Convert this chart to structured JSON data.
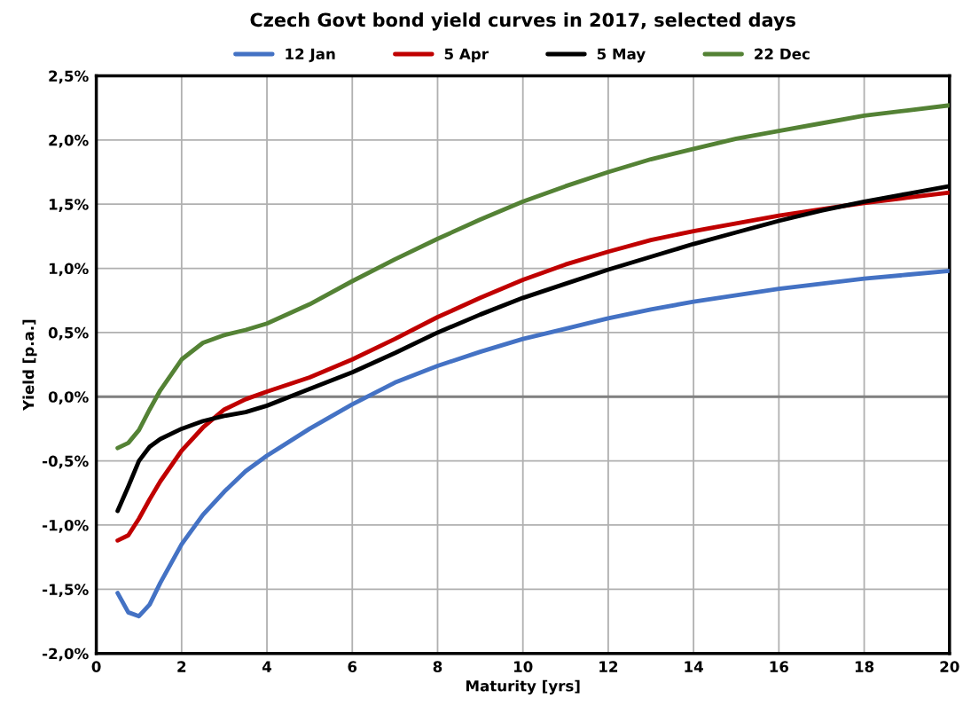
{
  "chart_data": {
    "type": "line",
    "title": "Czech Govt bond yield curves in 2017, selected days",
    "xlabel": "Maturity [yrs]",
    "ylabel": "Yield [p.a.]",
    "x": [
      0.5,
      0.75,
      1,
      1.25,
      1.5,
      2,
      2.5,
      3,
      3.5,
      4,
      5,
      6,
      7,
      8,
      9,
      10,
      11,
      12,
      13,
      14,
      15,
      16,
      17,
      18,
      19,
      20
    ],
    "series": [
      {
        "name": "12 Jan",
        "color": "#4472c4",
        "values": [
          -1.53,
          -1.68,
          -1.71,
          -1.62,
          -1.45,
          -1.15,
          -0.92,
          -0.74,
          -0.58,
          -0.46,
          -0.25,
          -0.06,
          0.11,
          0.24,
          0.35,
          0.45,
          0.53,
          0.61,
          0.68,
          0.74,
          0.79,
          0.84,
          0.88,
          0.92,
          0.95,
          0.98
        ]
      },
      {
        "name": "5 Apr",
        "color": "#c00000",
        "values": [
          -1.12,
          -1.08,
          -0.95,
          -0.8,
          -0.66,
          -0.42,
          -0.24,
          -0.1,
          -0.02,
          0.04,
          0.15,
          0.29,
          0.45,
          0.62,
          0.77,
          0.91,
          1.03,
          1.13,
          1.22,
          1.29,
          1.35,
          1.41,
          1.46,
          1.51,
          1.55,
          1.59
        ]
      },
      {
        "name": "5 May",
        "color": "#000000",
        "values": [
          -0.89,
          -0.7,
          -0.5,
          -0.39,
          -0.33,
          -0.25,
          -0.19,
          -0.15,
          -0.12,
          -0.07,
          0.06,
          0.19,
          0.34,
          0.5,
          0.64,
          0.77,
          0.88,
          0.99,
          1.09,
          1.19,
          1.28,
          1.37,
          1.45,
          1.52,
          1.58,
          1.64
        ]
      },
      {
        "name": "22 Dec",
        "color": "#548235",
        "values": [
          -0.4,
          -0.36,
          -0.26,
          -0.1,
          0.05,
          0.29,
          0.42,
          0.48,
          0.52,
          0.57,
          0.72,
          0.9,
          1.07,
          1.23,
          1.38,
          1.52,
          1.64,
          1.75,
          1.85,
          1.93,
          2.01,
          2.07,
          2.13,
          2.19,
          2.23,
          2.27
        ]
      }
    ],
    "xlim": [
      0,
      20
    ],
    "xticks": [
      0,
      2,
      4,
      6,
      8,
      10,
      12,
      14,
      16,
      18,
      20
    ],
    "ylim": [
      -2.0,
      2.5
    ],
    "yticks": [
      {
        "value": -2.0,
        "label": "-2,0%"
      },
      {
        "value": -1.5,
        "label": "-1,5%"
      },
      {
        "value": -1.0,
        "label": "-1,0%"
      },
      {
        "value": -0.5,
        "label": "-0,5%"
      },
      {
        "value": 0,
        "label": "0,0%"
      },
      {
        "value": 0.5,
        "label": "0,5%"
      },
      {
        "value": 1.0,
        "label": "1,0%"
      },
      {
        "value": 1.5,
        "label": "1,5%"
      },
      {
        "value": 2.0,
        "label": "2,0%"
      },
      {
        "value": 2.5,
        "label": "2,5%"
      }
    ],
    "ref_lines": [
      {
        "axis": "y",
        "value": 0,
        "color": "#808080"
      }
    ],
    "grid": true,
    "legend": "top",
    "marker": "none",
    "line_style": "solid"
  }
}
